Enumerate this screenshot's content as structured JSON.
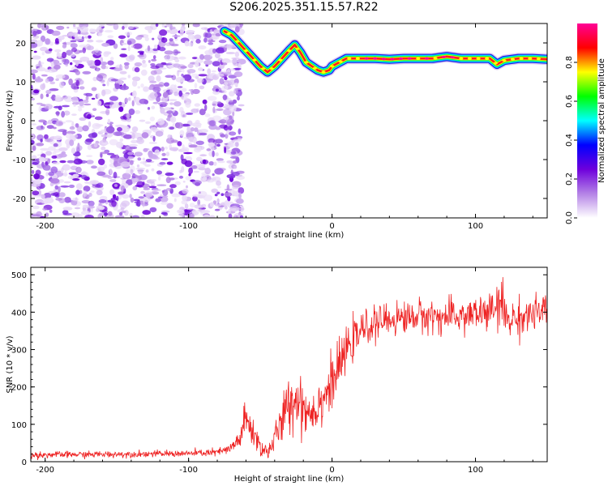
{
  "title": "S206.2025.351.15.57.R22",
  "chart_data": [
    {
      "type": "heatmap",
      "xlabel": "Height of straight line (km)",
      "ylabel": "Frequency (Hz)",
      "xlim": [
        -210,
        150
      ],
      "ylim": [
        -25,
        25
      ],
      "x_ticks": [
        -200,
        -100,
        0,
        100
      ],
      "y_ticks": [
        -20,
        -10,
        0,
        10,
        20
      ],
      "colorbar": {
        "label": "Normalized spectral amplitude",
        "range": [
          0,
          1
        ],
        "ticks": [
          "0.0",
          "0.2",
          "0.4",
          "0.6",
          "0.8"
        ],
        "colors": [
          "#ffffff",
          "#b482e6",
          "#6e00dc",
          "#0000ff",
          "#00ffff",
          "#00ff00",
          "#ffff00",
          "#ff0000",
          "#ff0096"
        ]
      },
      "ridge": {
        "description_values": "peak frequency (Hz) vs height (km)",
        "x": [
          -75,
          -70,
          -65,
          -60,
          -55,
          -50,
          -45,
          -40,
          -35,
          -30,
          -26,
          -22,
          -18,
          -14,
          -10,
          -6,
          -2,
          0,
          5,
          10,
          20,
          30,
          40,
          50,
          60,
          70,
          80,
          90,
          100,
          110,
          115,
          120,
          130,
          140,
          150
        ],
        "y": [
          23,
          22,
          20,
          18,
          16,
          14,
          12.5,
          14,
          16,
          18,
          19.5,
          17.5,
          15,
          14,
          13,
          12.5,
          13,
          14,
          15,
          16,
          16,
          16,
          15.8,
          16,
          16,
          16,
          16.5,
          16,
          16,
          16,
          14.5,
          15.5,
          16,
          16,
          15.8
        ]
      },
      "noise_region_km": [
        -210,
        -75
      ]
    },
    {
      "type": "line",
      "xlabel": "Height of straight line (km)",
      "ylabel": "SNR (10 * v/v)",
      "xlim": [
        -210,
        150
      ],
      "ylim": [
        0,
        520
      ],
      "x_ticks": [
        -200,
        -100,
        0,
        100
      ],
      "y_ticks": [
        0,
        100,
        200,
        300,
        400,
        500
      ],
      "series": [
        {
          "color": "#ee2222",
          "envelope_x": [
            -210,
            -150,
            -100,
            -80,
            -70,
            -65,
            -60,
            -55,
            -50,
            -45,
            -40,
            -35,
            -30,
            -25,
            -20,
            -15,
            -10,
            -5,
            0,
            5,
            10,
            20,
            30,
            40,
            50,
            60,
            70,
            80,
            90,
            100,
            110,
            115,
            118,
            120,
            125,
            130,
            140,
            150
          ],
          "envelope_mean": [
            18,
            20,
            22,
            25,
            35,
            60,
            110,
            80,
            40,
            25,
            60,
            110,
            150,
            170,
            150,
            130,
            150,
            180,
            210,
            250,
            300,
            350,
            370,
            380,
            385,
            390,
            390,
            385,
            390,
            395,
            400,
            410,
            430,
            390,
            380,
            385,
            395,
            400
          ],
          "envelope_spread": [
            8,
            8,
            8,
            10,
            15,
            30,
            50,
            40,
            25,
            20,
            35,
            55,
            70,
            70,
            70,
            60,
            60,
            60,
            60,
            60,
            50,
            40,
            40,
            40,
            40,
            40,
            40,
            40,
            45,
            45,
            45,
            50,
            80,
            60,
            45,
            45,
            45,
            45
          ]
        }
      ]
    }
  ]
}
